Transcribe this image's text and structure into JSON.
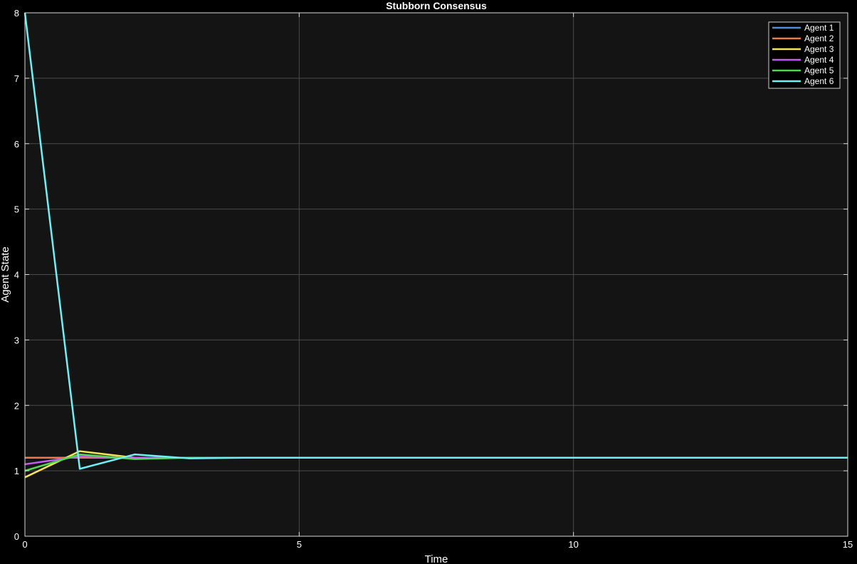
{
  "colors": {
    "background": "#000000",
    "plot_background": "#141414",
    "grid": "#4a4a4a",
    "axis": "#d9d9d9",
    "text": "#ffffff"
  },
  "chart_data": {
    "type": "line",
    "title": "Stubborn Consensus",
    "xlabel": "Time",
    "ylabel": "Agent State",
    "xlim": [
      0,
      15
    ],
    "ylim": [
      0,
      8
    ],
    "xticks": [
      0,
      5,
      10,
      15
    ],
    "yticks": [
      0,
      1,
      2,
      3,
      4,
      5,
      6,
      7,
      8
    ],
    "grid": true,
    "legend_position": "top-right",
    "x": [
      0,
      1,
      2,
      3,
      4,
      5,
      6,
      7,
      8,
      9,
      10,
      11,
      12,
      13,
      14,
      15
    ],
    "series": [
      {
        "name": "Agent 1",
        "color": "#4a90d9",
        "values": [
          1.2,
          1.2,
          1.2,
          1.2,
          1.2,
          1.2,
          1.2,
          1.2,
          1.2,
          1.2,
          1.2,
          1.2,
          1.2,
          1.2,
          1.2,
          1.2
        ]
      },
      {
        "name": "Agent 2",
        "color": "#f07a45",
        "values": [
          1.2,
          1.2,
          1.2,
          1.2,
          1.2,
          1.2,
          1.2,
          1.2,
          1.2,
          1.2,
          1.2,
          1.2,
          1.2,
          1.2,
          1.2,
          1.2
        ]
      },
      {
        "name": "Agent 3",
        "color": "#f5e35a",
        "values": [
          0.9,
          1.3,
          1.2,
          1.2,
          1.2,
          1.2,
          1.2,
          1.2,
          1.2,
          1.2,
          1.2,
          1.2,
          1.2,
          1.2,
          1.2,
          1.2
        ]
      },
      {
        "name": "Agent 4",
        "color": "#c25ef0",
        "values": [
          1.1,
          1.22,
          1.2,
          1.2,
          1.2,
          1.2,
          1.2,
          1.2,
          1.2,
          1.2,
          1.2,
          1.2,
          1.2,
          1.2,
          1.2,
          1.2
        ]
      },
      {
        "name": "Agent 5",
        "color": "#4fd94f",
        "values": [
          1.0,
          1.25,
          1.18,
          1.2,
          1.2,
          1.2,
          1.2,
          1.2,
          1.2,
          1.2,
          1.2,
          1.2,
          1.2,
          1.2,
          1.2,
          1.2
        ]
      },
      {
        "name": "Agent 6",
        "color": "#6ef0f5",
        "values": [
          8.0,
          1.03,
          1.25,
          1.19,
          1.2,
          1.2,
          1.2,
          1.2,
          1.2,
          1.2,
          1.2,
          1.2,
          1.2,
          1.2,
          1.2,
          1.2
        ]
      }
    ]
  }
}
